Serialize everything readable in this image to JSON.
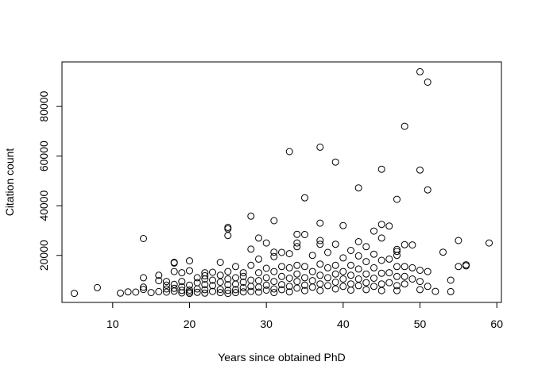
{
  "chart_data": {
    "type": "scatter",
    "title": "",
    "xlabel": "Years since obtained PhD",
    "ylabel": "Citation count",
    "xlim": [
      3.4,
      60.6
    ],
    "ylim": [
      1050,
      97950
    ],
    "xticks": [
      10,
      20,
      30,
      40,
      50,
      60
    ],
    "yticks": [
      20000,
      40000,
      60000,
      80000
    ],
    "grid": false,
    "legend": "none",
    "marker": "open-circle",
    "color": "#000000",
    "points": [
      [
        5,
        4700
      ],
      [
        8,
        7000
      ],
      [
        11,
        4800
      ],
      [
        12,
        5300
      ],
      [
        13,
        5200
      ],
      [
        14,
        26800
      ],
      [
        14,
        11000
      ],
      [
        14,
        7200
      ],
      [
        14,
        6300
      ],
      [
        15,
        5000
      ],
      [
        16,
        12000
      ],
      [
        16,
        9800
      ],
      [
        16,
        5400
      ],
      [
        17,
        9500
      ],
      [
        17,
        8000
      ],
      [
        17,
        6500
      ],
      [
        17,
        5200
      ],
      [
        18,
        17200
      ],
      [
        18,
        16900
      ],
      [
        18,
        13500
      ],
      [
        18,
        8300
      ],
      [
        18,
        6700
      ],
      [
        18,
        5600
      ],
      [
        19,
        13000
      ],
      [
        19,
        9500
      ],
      [
        19,
        7400
      ],
      [
        19,
        5900
      ],
      [
        19,
        4900
      ],
      [
        20,
        17800
      ],
      [
        20,
        13800
      ],
      [
        20,
        8000
      ],
      [
        20,
        6000
      ],
      [
        20,
        5200
      ],
      [
        20,
        4700
      ],
      [
        21,
        11000
      ],
      [
        21,
        9000
      ],
      [
        21,
        6500
      ],
      [
        21,
        5100
      ],
      [
        22,
        13000
      ],
      [
        22,
        11800
      ],
      [
        22,
        10500
      ],
      [
        22,
        8200
      ],
      [
        22,
        6200
      ],
      [
        22,
        4800
      ],
      [
        23,
        13200
      ],
      [
        23,
        10000
      ],
      [
        23,
        7800
      ],
      [
        23,
        5500
      ],
      [
        24,
        17200
      ],
      [
        24,
        12000
      ],
      [
        24,
        9200
      ],
      [
        24,
        6300
      ],
      [
        24,
        5000
      ],
      [
        25,
        31300
      ],
      [
        25,
        30700
      ],
      [
        25,
        28000
      ],
      [
        25,
        13500
      ],
      [
        25,
        10500
      ],
      [
        25,
        8200
      ],
      [
        25,
        5900
      ],
      [
        25,
        4700
      ],
      [
        26,
        15500
      ],
      [
        26,
        11000
      ],
      [
        26,
        8400
      ],
      [
        26,
        6200
      ],
      [
        26,
        5000
      ],
      [
        27,
        13000
      ],
      [
        27,
        11500
      ],
      [
        27,
        9200
      ],
      [
        27,
        7000
      ],
      [
        27,
        5300
      ],
      [
        28,
        35800
      ],
      [
        28,
        22500
      ],
      [
        28,
        16000
      ],
      [
        28,
        10000
      ],
      [
        28,
        7500
      ],
      [
        28,
        5500
      ],
      [
        29,
        27000
      ],
      [
        29,
        18500
      ],
      [
        29,
        13000
      ],
      [
        29,
        9800
      ],
      [
        29,
        7200
      ],
      [
        29,
        5200
      ],
      [
        30,
        25000
      ],
      [
        30,
        14800
      ],
      [
        30,
        11000
      ],
      [
        30,
        8000
      ],
      [
        30,
        6000
      ],
      [
        31,
        34000
      ],
      [
        31,
        21300
      ],
      [
        31,
        19500
      ],
      [
        31,
        13500
      ],
      [
        31,
        9500
      ],
      [
        31,
        6500
      ],
      [
        31,
        5000
      ],
      [
        32,
        21200
      ],
      [
        32,
        15500
      ],
      [
        32,
        11500
      ],
      [
        32,
        8200
      ],
      [
        32,
        6200
      ],
      [
        33,
        61800
      ],
      [
        33,
        20700
      ],
      [
        33,
        15000
      ],
      [
        33,
        10800
      ],
      [
        33,
        7500
      ],
      [
        33,
        5300
      ],
      [
        34,
        28500
      ],
      [
        34,
        25000
      ],
      [
        34,
        23500
      ],
      [
        34,
        16000
      ],
      [
        34,
        12500
      ],
      [
        34,
        9500
      ],
      [
        34,
        6800
      ],
      [
        35,
        43200
      ],
      [
        35,
        28400
      ],
      [
        35,
        15500
      ],
      [
        35,
        11000
      ],
      [
        35,
        8000
      ],
      [
        35,
        5800
      ],
      [
        36,
        20000
      ],
      [
        36,
        13500
      ],
      [
        36,
        9800
      ],
      [
        36,
        7200
      ],
      [
        37,
        63600
      ],
      [
        37,
        33000
      ],
      [
        37,
        26000
      ],
      [
        37,
        24500
      ],
      [
        37,
        16500
      ],
      [
        37,
        12000
      ],
      [
        37,
        8500
      ],
      [
        37,
        5800
      ],
      [
        38,
        21200
      ],
      [
        38,
        15000
      ],
      [
        38,
        11000
      ],
      [
        38,
        7800
      ],
      [
        39,
        57600
      ],
      [
        39,
        24500
      ],
      [
        39,
        16000
      ],
      [
        39,
        12500
      ],
      [
        39,
        9200
      ],
      [
        39,
        6500
      ],
      [
        40,
        32000
      ],
      [
        40,
        19000
      ],
      [
        40,
        13500
      ],
      [
        40,
        10500
      ],
      [
        40,
        7500
      ],
      [
        41,
        22000
      ],
      [
        41,
        16000
      ],
      [
        41,
        12000
      ],
      [
        41,
        8500
      ],
      [
        41,
        6000
      ],
      [
        42,
        47200
      ],
      [
        42,
        25500
      ],
      [
        42,
        19800
      ],
      [
        42,
        14500
      ],
      [
        42,
        10500
      ],
      [
        42,
        7800
      ],
      [
        43,
        23500
      ],
      [
        43,
        17500
      ],
      [
        43,
        12500
      ],
      [
        43,
        9000
      ],
      [
        43,
        6200
      ],
      [
        44,
        29800
      ],
      [
        44,
        20500
      ],
      [
        44,
        15000
      ],
      [
        44,
        10800
      ],
      [
        44,
        7500
      ],
      [
        45,
        54700
      ],
      [
        45,
        32500
      ],
      [
        45,
        27000
      ],
      [
        45,
        18000
      ],
      [
        45,
        12800
      ],
      [
        45,
        8500
      ],
      [
        45,
        5800
      ],
      [
        46,
        31800
      ],
      [
        46,
        18500
      ],
      [
        46,
        13000
      ],
      [
        46,
        9000
      ],
      [
        47,
        42600
      ],
      [
        47,
        22400
      ],
      [
        47,
        21600
      ],
      [
        47,
        20000
      ],
      [
        47,
        15500
      ],
      [
        47,
        11500
      ],
      [
        47,
        7800
      ],
      [
        47,
        5800
      ],
      [
        48,
        72000
      ],
      [
        48,
        24300
      ],
      [
        48,
        15500
      ],
      [
        48,
        11500
      ],
      [
        48,
        8500
      ],
      [
        49,
        24200
      ],
      [
        49,
        15000
      ],
      [
        49,
        10500
      ],
      [
        50,
        94000
      ],
      [
        50,
        54400
      ],
      [
        50,
        14000
      ],
      [
        50,
        9500
      ],
      [
        50,
        6200
      ],
      [
        51,
        89800
      ],
      [
        51,
        46400
      ],
      [
        51,
        13500
      ],
      [
        51,
        7500
      ],
      [
        52,
        5500
      ],
      [
        53,
        21300
      ],
      [
        54,
        10000
      ],
      [
        54,
        5400
      ],
      [
        55,
        26000
      ],
      [
        55,
        15500
      ],
      [
        56,
        16200
      ],
      [
        56,
        15800
      ],
      [
        59,
        25000
      ]
    ]
  }
}
